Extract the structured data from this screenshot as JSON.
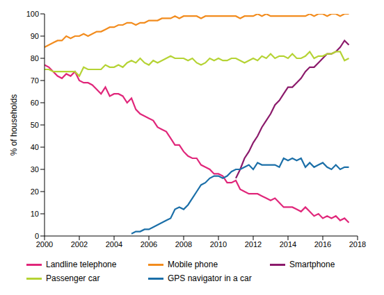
{
  "chart_data": {
    "type": "line",
    "y_label": "% of households",
    "x": [
      2000,
      2000.25,
      2000.5,
      2000.75,
      2001,
      2001.25,
      2001.5,
      2001.75,
      2002,
      2002.25,
      2002.5,
      2002.75,
      2003,
      2003.25,
      2003.5,
      2003.75,
      2004,
      2004.25,
      2004.5,
      2004.75,
      2005,
      2005.25,
      2005.5,
      2005.75,
      2006,
      2006.25,
      2006.5,
      2006.75,
      2007,
      2007.25,
      2007.5,
      2007.75,
      2008,
      2008.25,
      2008.5,
      2008.75,
      2009,
      2009.25,
      2009.5,
      2009.75,
      2010,
      2010.25,
      2010.5,
      2010.75,
      2011,
      2011.25,
      2011.5,
      2011.75,
      2012,
      2012.25,
      2012.5,
      2012.75,
      2013,
      2013.25,
      2013.5,
      2013.75,
      2014,
      2014.25,
      2014.5,
      2014.75,
      2015,
      2015.25,
      2015.5,
      2015.75,
      2016,
      2016.25,
      2016.5,
      2016.75,
      2017,
      2017.25,
      2017.5
    ],
    "series": [
      {
        "name": "Landline telephone",
        "color": "#e0267a",
        "values": [
          77,
          76,
          74,
          72,
          71,
          73,
          72,
          74,
          70,
          69,
          69,
          68,
          66,
          64,
          67,
          63,
          64,
          64,
          63,
          60,
          62,
          57,
          55,
          54,
          53,
          52,
          49,
          48,
          47,
          44,
          41,
          41,
          38,
          36,
          35,
          35,
          32,
          31,
          30,
          28,
          28,
          27,
          24,
          24,
          25,
          21,
          20,
          19,
          19,
          19,
          18,
          17,
          16,
          17,
          15,
          13,
          13,
          13,
          12,
          11,
          13,
          11,
          9,
          10,
          8,
          9,
          8,
          9,
          7,
          8,
          6
        ]
      },
      {
        "name": "Mobile phone",
        "color": "#f28c1e",
        "values": [
          85,
          86,
          87,
          88,
          88,
          90,
          89,
          90,
          90,
          91,
          90,
          91,
          92,
          92,
          93,
          94,
          94,
          95,
          95,
          96,
          96,
          95,
          96,
          96,
          97,
          97,
          97,
          98,
          98,
          98,
          99,
          98,
          99,
          99,
          99,
          99,
          98,
          99,
          99,
          99,
          99,
          99,
          99,
          99,
          99,
          98,
          99,
          99,
          99,
          100,
          99,
          100,
          99,
          99,
          99,
          99,
          99,
          99,
          99,
          99,
          99,
          100,
          99,
          100,
          100,
          99,
          100,
          100,
          99,
          100,
          100
        ]
      },
      {
        "name": "Smartphone",
        "color": "#8b1a6b",
        "values": [
          null,
          null,
          null,
          null,
          null,
          null,
          null,
          null,
          null,
          null,
          null,
          null,
          null,
          null,
          null,
          null,
          null,
          null,
          null,
          null,
          null,
          null,
          null,
          null,
          null,
          null,
          null,
          null,
          null,
          null,
          null,
          null,
          null,
          null,
          null,
          null,
          null,
          null,
          null,
          null,
          null,
          null,
          null,
          null,
          26,
          30,
          35,
          38,
          42,
          45,
          49,
          52,
          55,
          59,
          61,
          64,
          67,
          67,
          69,
          71,
          74,
          76,
          76,
          78,
          80,
          82,
          82,
          83,
          85,
          88,
          86
        ]
      },
      {
        "name": "Passenger car",
        "color": "#b5d334",
        "values": [
          75,
          75,
          74,
          74,
          74,
          74,
          74,
          74,
          72,
          76,
          75,
          75,
          75,
          75,
          77,
          76,
          76,
          77,
          76,
          78,
          79,
          78,
          80,
          78,
          77,
          79,
          78,
          79,
          80,
          81,
          80,
          80,
          80,
          79,
          80,
          78,
          77,
          78,
          80,
          79,
          80,
          79,
          79,
          80,
          80,
          79,
          78,
          79,
          80,
          79,
          81,
          80,
          82,
          80,
          81,
          81,
          80,
          82,
          80,
          80,
          81,
          83,
          80,
          81,
          81,
          82,
          82,
          83,
          83,
          79,
          80
        ]
      },
      {
        "name": "GPS navigator in a car",
        "color": "#1b6fa8",
        "values": [
          null,
          null,
          null,
          null,
          null,
          null,
          null,
          null,
          null,
          null,
          null,
          null,
          null,
          null,
          null,
          null,
          null,
          null,
          null,
          null,
          1,
          2,
          2,
          3,
          3,
          4,
          5,
          6,
          7,
          8,
          12,
          13,
          12,
          14,
          17,
          20,
          23,
          24,
          26,
          27,
          27,
          26,
          27,
          29,
          30,
          30,
          31,
          32,
          30,
          33,
          32,
          32,
          32,
          32,
          31,
          35,
          34,
          35,
          34,
          35,
          31,
          33,
          31,
          32,
          33,
          31,
          30,
          32,
          30,
          31,
          31
        ]
      }
    ],
    "xlim": [
      2000,
      2018
    ],
    "xticks": [
      2000,
      2002,
      2004,
      2006,
      2008,
      2010,
      2012,
      2014,
      2016,
      2018
    ],
    "ylim": [
      0,
      100
    ],
    "yticks": [
      0,
      10,
      20,
      30,
      40,
      50,
      60,
      70,
      80,
      90,
      100
    ],
    "grid": false,
    "legend": "bottom"
  }
}
